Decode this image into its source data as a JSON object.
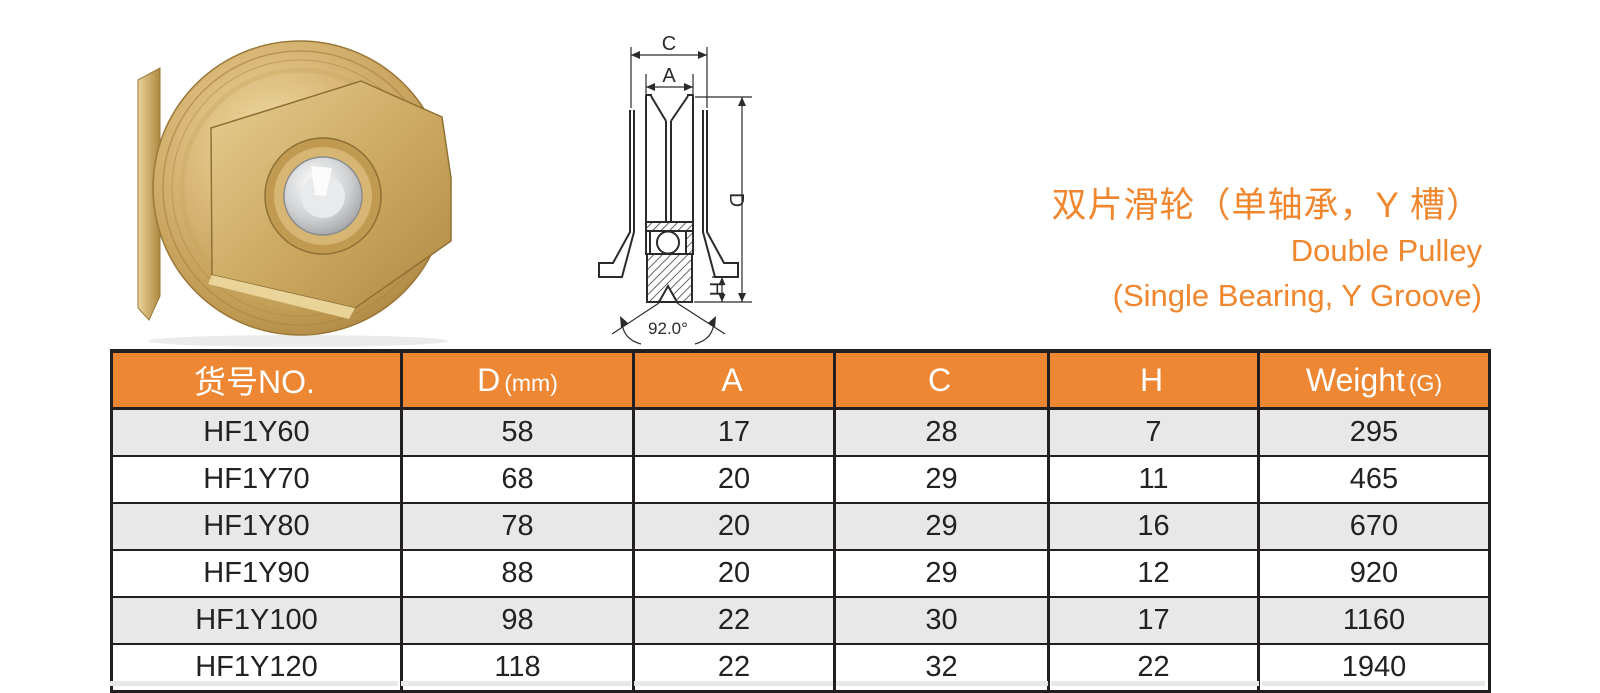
{
  "title": {
    "zh": "双片滑轮（单轴承，Y 槽）",
    "en_line1": "Double Pulley",
    "en_line2": "(Single Bearing, Y Groove)"
  },
  "diagram": {
    "labels": {
      "c": "C",
      "a": "A",
      "d": "D",
      "h": "H",
      "angle": "92.0°"
    }
  },
  "colors": {
    "accent_orange": "#EE8733",
    "title_orange": "#F0862D",
    "row_gray": "#E8E8E8",
    "border_dark": "#231F20"
  },
  "table": {
    "columns": [
      {
        "label": "货号NO.",
        "unit": ""
      },
      {
        "label": "D",
        "unit": "(mm)"
      },
      {
        "label": "A",
        "unit": ""
      },
      {
        "label": "C",
        "unit": ""
      },
      {
        "label": "H",
        "unit": ""
      },
      {
        "label": "Weight",
        "unit": "(G)"
      }
    ],
    "rows": [
      [
        "HF1Y60",
        "58",
        "17",
        "28",
        "7",
        "295"
      ],
      [
        "HF1Y70",
        "68",
        "20",
        "29",
        "11",
        "465"
      ],
      [
        "HF1Y80",
        "78",
        "20",
        "29",
        "16",
        "670"
      ],
      [
        "HF1Y90",
        "88",
        "20",
        "29",
        "12",
        "920"
      ],
      [
        "HF1Y100",
        "98",
        "22",
        "30",
        "17",
        "1160"
      ],
      [
        "HF1Y120",
        "118",
        "22",
        "32",
        "22",
        "1940"
      ]
    ]
  }
}
